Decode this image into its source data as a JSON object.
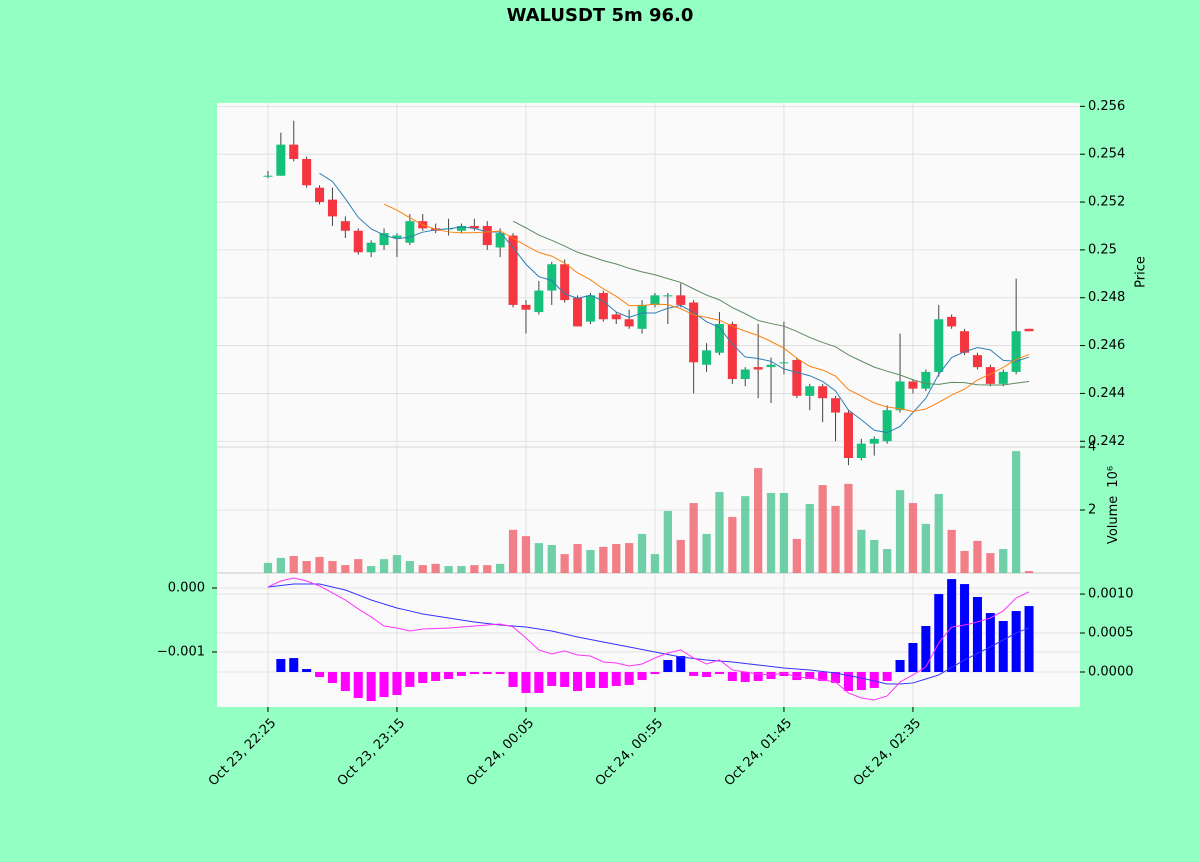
{
  "chart_data": [
    {
      "type": "candlestick",
      "title": "WALUSDT 5m 96.0",
      "ylabel": "Price",
      "xlim": [
        -3.95,
        62.95
      ],
      "ylim": [
        0.24176,
        0.25614
      ],
      "yticks": [
        0.242,
        0.244,
        0.246,
        0.248,
        0.25,
        0.252,
        0.254,
        0.256
      ],
      "grid": true,
      "up_color": "#15c07a",
      "down_color": "#f5353f",
      "wick_color": "#444444",
      "open": [
        0.2531,
        0.2531,
        0.2544,
        0.2538,
        0.2526,
        0.2521,
        0.2512,
        0.2508,
        0.2499,
        0.2502,
        0.2505,
        0.2503,
        0.2512,
        0.2509,
        0.2509,
        0.2508,
        0.251,
        0.251,
        0.2501,
        0.2506,
        0.2477,
        0.2474,
        0.2483,
        0.2494,
        0.248,
        0.247,
        0.2482,
        0.2473,
        0.2471,
        0.2467,
        0.2477,
        0.2481,
        0.2481,
        0.2478,
        0.2452,
        0.2457,
        0.2469,
        0.2446,
        0.2451,
        0.2451,
        0.2453,
        0.2454,
        0.2439,
        0.2443,
        0.2438,
        0.2432,
        0.2413,
        0.2419,
        0.242,
        0.2433,
        0.2445,
        0.2442,
        0.2449,
        0.2472,
        0.2466,
        0.2456,
        0.2451,
        0.2444,
        0.2449,
        0.2467
      ],
      "high": [
        0.2533,
        0.2549,
        0.2554,
        0.2539,
        0.2527,
        0.2526,
        0.2514,
        0.2509,
        0.2504,
        0.2509,
        0.2507,
        0.2515,
        0.2515,
        0.2511,
        0.2513,
        0.2511,
        0.2513,
        0.2512,
        0.2509,
        0.2507,
        0.2479,
        0.2487,
        0.2495,
        0.2496,
        0.2481,
        0.2482,
        0.2483,
        0.2474,
        0.2475,
        0.2479,
        0.2482,
        0.2482,
        0.2486,
        0.2479,
        0.2461,
        0.2474,
        0.247,
        0.2451,
        0.2469,
        0.2455,
        0.247,
        0.2455,
        0.2444,
        0.2444,
        0.2439,
        0.2433,
        0.2421,
        0.2422,
        0.2435,
        0.2465,
        0.2446,
        0.245,
        0.2477,
        0.2473,
        0.2467,
        0.2457,
        0.2452,
        0.245,
        0.2488,
        0.2467
      ],
      "low": [
        0.253,
        0.2531,
        0.2537,
        0.2526,
        0.2519,
        0.251,
        0.2505,
        0.2498,
        0.2497,
        0.25,
        0.2497,
        0.2502,
        0.2508,
        0.2507,
        0.2506,
        0.2507,
        0.2508,
        0.25,
        0.2497,
        0.2476,
        0.2465,
        0.2473,
        0.2477,
        0.2478,
        0.2468,
        0.2469,
        0.247,
        0.2469,
        0.2467,
        0.2465,
        0.2476,
        0.2469,
        0.2476,
        0.244,
        0.2449,
        0.2456,
        0.2444,
        0.2443,
        0.2438,
        0.2436,
        0.2448,
        0.2438,
        0.2433,
        0.2428,
        0.242,
        0.241,
        0.2412,
        0.2414,
        0.2419,
        0.2432,
        0.244,
        0.2441,
        0.2447,
        0.2467,
        0.2456,
        0.245,
        0.2443,
        0.2443,
        0.2448,
        0.2466
      ],
      "close": [
        0.2531,
        0.2544,
        0.2538,
        0.2527,
        0.252,
        0.2514,
        0.2508,
        0.2499,
        0.2503,
        0.2507,
        0.2506,
        0.2512,
        0.2509,
        0.2508,
        0.2509,
        0.251,
        0.2509,
        0.2502,
        0.2507,
        0.2477,
        0.2475,
        0.2483,
        0.2494,
        0.2479,
        0.2468,
        0.2481,
        0.2471,
        0.2471,
        0.2468,
        0.2477,
        0.2481,
        0.2481,
        0.2477,
        0.2453,
        0.2458,
        0.2469,
        0.2446,
        0.245,
        0.245,
        0.2452,
        0.2453,
        0.2439,
        0.2443,
        0.2438,
        0.2432,
        0.2413,
        0.2419,
        0.2421,
        0.2433,
        0.2445,
        0.2442,
        0.2449,
        0.2471,
        0.2468,
        0.2457,
        0.2451,
        0.2444,
        0.2449,
        0.2466,
        0.2466
      ],
      "moving_averages": [
        {
          "color": "#2f7fb4",
          "values": [
            null,
            null,
            null,
            null,
            0.2532,
            0.25286,
            0.25214,
            0.25136,
            0.25088,
            0.25062,
            0.25046,
            0.25054,
            0.25074,
            0.25084,
            0.25088,
            0.25096,
            0.2509,
            0.25076,
            0.25074,
            0.2501,
            0.2494,
            0.24888,
            0.24872,
            0.24816,
            0.24798,
            0.2481,
            0.24786,
            0.2474,
            0.24718,
            0.24736,
            0.24736,
            0.24756,
            0.24768,
            0.24738,
            0.247,
            0.24676,
            0.24606,
            0.24552,
            0.24546,
            0.24534,
            0.24502,
            0.24488,
            0.24474,
            0.2445,
            0.2441,
            0.2433,
            0.2429,
            0.24246,
            0.24236,
            0.24262,
            0.2432,
            0.2438,
            0.2448,
            0.2455,
            0.24574,
            0.24592,
            0.24582,
            0.24538,
            0.24534,
            0.24552
          ]
        },
        {
          "color": "#ff800e",
          "values": [
            null,
            null,
            null,
            null,
            null,
            null,
            null,
            null,
            null,
            0.25191,
            0.25166,
            0.25134,
            0.25105,
            0.25086,
            0.25075,
            0.25071,
            0.25072,
            0.25075,
            0.25079,
            0.25049,
            0.25018,
            0.24989,
            0.24974,
            0.24945,
            0.24904,
            0.24875,
            0.24837,
            0.24806,
            0.24767,
            0.24767,
            0.24773,
            0.24771,
            0.24754,
            0.24728,
            0.24718,
            0.24706,
            0.24681,
            0.2466,
            0.24642,
            0.24617,
            0.24589,
            0.24547,
            0.24513,
            0.24498,
            0.24472,
            0.24416,
            0.24389,
            0.2436,
            0.24343,
            0.24336,
            0.24325,
            0.24335,
            0.24363,
            0.24393,
            0.24418,
            0.24456,
            0.24481,
            0.24509,
            0.24542,
            0.24563
          ]
        },
        {
          "color": "#5f8a5f",
          "values": [
            null,
            null,
            null,
            null,
            null,
            null,
            null,
            null,
            null,
            null,
            null,
            null,
            null,
            null,
            null,
            null,
            null,
            null,
            null,
            0.2512,
            0.25092,
            0.25062,
            0.2504,
            0.25016,
            0.2499,
            0.24973,
            0.24955,
            0.24941,
            0.24923,
            0.24908,
            0.24896,
            0.2488,
            0.24864,
            0.24837,
            0.24811,
            0.24791,
            0.24759,
            0.24733,
            0.24705,
            0.24692,
            0.24681,
            0.24659,
            0.24634,
            0.24613,
            0.24595,
            0.24561,
            0.24535,
            0.2451,
            0.24493,
            0.24477,
            0.24457,
            0.24441,
            0.24438,
            0.24446,
            0.24445,
            0.24436,
            0.24435,
            0.24435,
            0.24443,
            0.2445
          ]
        }
      ]
    },
    {
      "type": "bar",
      "ylabel": "Volume",
      "offset_label": "10⁶",
      "xlim": [
        -3.95,
        62.95
      ],
      "ylim": [
        0,
        4
      ],
      "yticks": [
        2,
        4
      ],
      "up_color": "#4cc592",
      "down_color": "#f0606a",
      "values": [
        0.32,
        0.48,
        0.54,
        0.38,
        0.51,
        0.38,
        0.25,
        0.44,
        0.22,
        0.44,
        0.57,
        0.38,
        0.25,
        0.29,
        0.22,
        0.22,
        0.25,
        0.25,
        0.29,
        1.37,
        1.17,
        0.95,
        0.89,
        0.6,
        0.92,
        0.73,
        0.83,
        0.92,
        0.95,
        1.24,
        0.6,
        1.97,
        1.05,
        2.22,
        1.24,
        2.57,
        1.78,
        2.44,
        3.33,
        2.54,
        2.54,
        1.08,
        2.19,
        2.79,
        2.13,
        2.83,
        1.37,
        1.05,
        0.76,
        2.63,
        2.22,
        1.56,
        2.51,
        1.37,
        0.7,
        1.02,
        0.63,
        0.76,
        3.87,
        0.06
      ]
    },
    {
      "type": "macd",
      "xlim": [
        -3.95,
        62.95
      ],
      "ylim": [
        -0.00186,
        0.000234
      ],
      "y2lim": [
        -0.000449,
        0.00127
      ],
      "yticks": [
        {
          "value": -0.001,
          "label": "−0.001"
        },
        {
          "value": 0,
          "label": "0.000"
        }
      ],
      "y2ticks": [
        {
          "value": 0,
          "label": "0.0000"
        },
        {
          "value": 0.0005,
          "label": "0.0005"
        },
        {
          "value": 0.001,
          "label": "0.0010"
        }
      ],
      "xticks": [
        {
          "value": 0,
          "label": "Oct 23, 22:25"
        },
        {
          "value": 10,
          "label": "Oct 23, 23:15"
        },
        {
          "value": 20,
          "label": "Oct 24, 00:05"
        },
        {
          "value": 30,
          "label": "Oct 24, 00:55"
        },
        {
          "value": 40,
          "label": "Oct 24, 01:45"
        },
        {
          "value": 50,
          "label": "Oct 24, 02:35"
        }
      ],
      "up_color": "#0000ff",
      "down_color": "#ff00ff",
      "values": [
        null,
        0.000167,
        0.000179,
        3.8e-05,
        -6.4e-05,
        -0.000141,
        -0.000244,
        -0.000333,
        -0.000372,
        -0.000321,
        -0.000295,
        -0.000192,
        -0.000141,
        -0.000115,
        -9e-05,
        -5.1e-05,
        -2.6e-05,
        -2.6e-05,
        -2.6e-05,
        -0.000192,
        -0.000269,
        -0.000269,
        -0.000179,
        -0.000192,
        -0.000244,
        -0.000205,
        -0.000205,
        -0.000179,
        -0.000167,
        -0.000103,
        -2.6e-05,
        0.000154,
        0.000205,
        -5.1e-05,
        -6.4e-05,
        -2.6e-05,
        -0.000115,
        -0.000128,
        -0.000115,
        -9e-05,
        -5.1e-05,
        -0.000103,
        -9e-05,
        -0.000115,
        -0.000141,
        -0.000244,
        -0.000231,
        -0.000205,
        -0.000115,
        0.000154,
        0.000372,
        0.00059,
        0.001,
        0.001192,
        0.001128,
        0.000962,
        0.000756,
        0.000654,
        0.000782,
        0.000846
      ],
      "lines": [
        {
          "color": "#3333ff",
          "values": [
            1.56e-05,
            3.9e-05,
            6.25e-05,
            6.25e-05,
            6.25e-05,
            1.56e-05,
            -3.13e-05,
            -0.000109,
            -0.000188,
            -0.00025,
            -0.000313,
            -0.000359,
            -0.000406,
            -0.000438,
            -0.000469,
            -0.0005,
            -0.000531,
            -0.000555,
            -0.000578,
            -0.000594,
            -0.000609,
            -0.000641,
            -0.000672,
            -0.000719,
            -0.000766,
            -0.000805,
            -0.000844,
            -0.000883,
            -0.000922,
            -0.000961,
            -0.001,
            -0.001039,
            -0.001078,
            -0.001102,
            -0.001125,
            -0.001141,
            -0.001156,
            -0.00118,
            -0.001203,
            -0.001227,
            -0.00125,
            -0.001266,
            -0.001281,
            -0.001305,
            -0.001328,
            -0.001367,
            -0.001406,
            -0.001453,
            -0.0015,
            -0.0015,
            -0.001484,
            -0.001422,
            -0.001359,
            -0.001242,
            -0.001125,
            -0.001023,
            -0.000922,
            -0.000813,
            -0.000703,
            -0.000625
          ]
        },
        {
          "color": "#ff33ff",
          "values": [
            1.56e-05,
            0.000109,
            0.000156,
            0.000109,
            3.1e-05,
            -7.8e-05,
            -0.000188,
            -0.000328,
            -0.000453,
            -0.000594,
            -0.000625,
            -0.000672,
            -0.000641,
            -0.000633,
            -0.000625,
            -0.000609,
            -0.000594,
            -0.000578,
            -0.000563,
            -0.000609,
            -0.000781,
            -0.000969,
            -0.001031,
            -0.000984,
            -0.001047,
            -0.001063,
            -0.001156,
            -0.001172,
            -0.001219,
            -0.001188,
            -0.001094,
            -0.001016,
            -0.000969,
            -0.001094,
            -0.001188,
            -0.001125,
            -0.001281,
            -0.001313,
            -0.001344,
            -0.001359,
            -0.001328,
            -0.001391,
            -0.001406,
            -0.001438,
            -0.001469,
            -0.001641,
            -0.001719,
            -0.00175,
            -0.001688,
            -0.001469,
            -0.001359,
            -0.001234,
            -0.000859,
            -0.000609,
            -0.000578,
            -0.000531,
            -0.000469,
            -0.000359,
            -0.000156,
            -6.25e-05
          ]
        }
      ]
    }
  ]
}
